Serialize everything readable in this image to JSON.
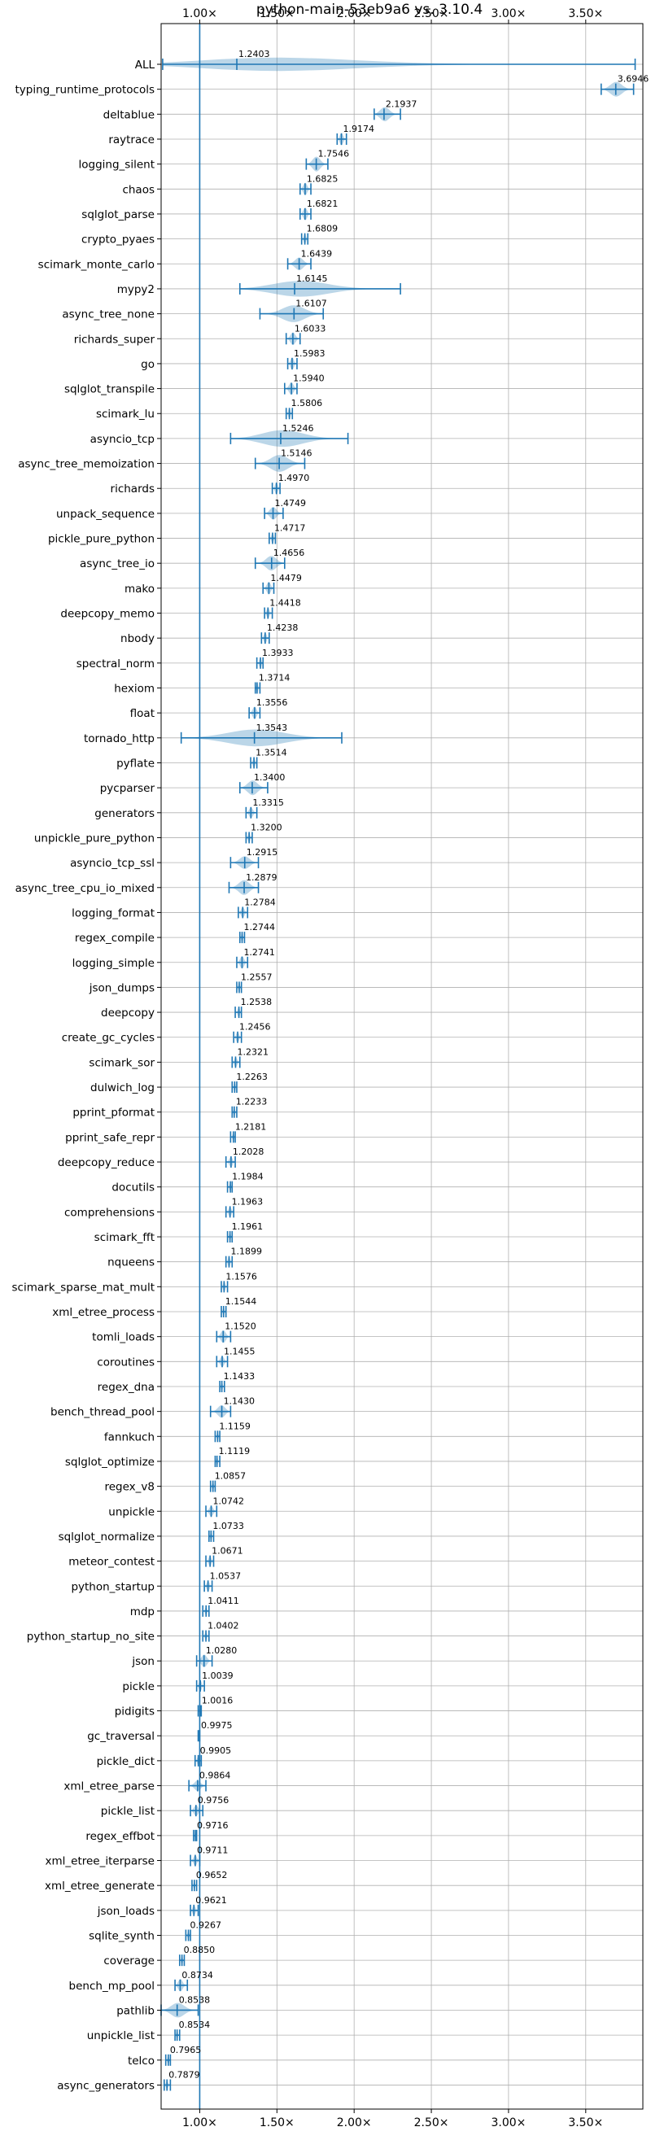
{
  "chart_data": {
    "type": "violin",
    "title": "python-main-53eb9a6 vs. 3.10.4",
    "xlabel": "",
    "ylabel": "",
    "xlim": [
      0.75,
      3.87
    ],
    "xticks": [
      1.0,
      1.5,
      2.0,
      2.5,
      3.0,
      3.5
    ],
    "xtick_labels": [
      "1.00×",
      "1.50×",
      "2.00×",
      "2.50×",
      "3.00×",
      "3.50×"
    ],
    "reference_line": 1.0,
    "grid": true,
    "color": "#1f77b4",
    "benchmarks": [
      {
        "name": "ALL",
        "value": "1.2403",
        "median": 1.2403,
        "min": 0.76,
        "max": 3.82,
        "width": 0.9
      },
      {
        "name": "typing_runtime_protocols",
        "value": "3.6946",
        "median": 3.6946,
        "min": 3.6,
        "max": 3.81,
        "width": 0.7
      },
      {
        "name": "deltablue",
        "value": "2.1937",
        "median": 2.1937,
        "min": 2.13,
        "max": 2.3,
        "width": 0.7
      },
      {
        "name": "raytrace",
        "value": "1.9174",
        "median": 1.9174,
        "min": 1.89,
        "max": 1.95,
        "width": 0.6
      },
      {
        "name": "logging_silent",
        "value": "1.7546",
        "median": 1.7546,
        "min": 1.69,
        "max": 1.83,
        "width": 0.7
      },
      {
        "name": "chaos",
        "value": "1.6825",
        "median": 1.6825,
        "min": 1.65,
        "max": 1.72,
        "width": 0.6
      },
      {
        "name": "sqlglot_parse",
        "value": "1.6821",
        "median": 1.6821,
        "min": 1.65,
        "max": 1.72,
        "width": 0.6
      },
      {
        "name": "crypto_pyaes",
        "value": "1.6809",
        "median": 1.6809,
        "min": 1.66,
        "max": 1.7,
        "width": 0.5
      },
      {
        "name": "scimark_monte_carlo",
        "value": "1.6439",
        "median": 1.6439,
        "min": 1.57,
        "max": 1.72,
        "width": 0.6
      },
      {
        "name": "mypy2",
        "value": "1.6145",
        "median": 1.6145,
        "min": 1.26,
        "max": 2.3,
        "width": 0.8
      },
      {
        "name": "async_tree_none",
        "value": "1.6107",
        "median": 1.6107,
        "min": 1.39,
        "max": 1.8,
        "width": 0.8
      },
      {
        "name": "richards_super",
        "value": "1.6033",
        "median": 1.6033,
        "min": 1.56,
        "max": 1.65,
        "width": 0.6
      },
      {
        "name": "go",
        "value": "1.5983",
        "median": 1.5983,
        "min": 1.57,
        "max": 1.63,
        "width": 0.6
      },
      {
        "name": "sqlglot_transpile",
        "value": "1.5940",
        "median": 1.594,
        "min": 1.55,
        "max": 1.63,
        "width": 0.6
      },
      {
        "name": "scimark_lu",
        "value": "1.5806",
        "median": 1.5806,
        "min": 1.56,
        "max": 1.6,
        "width": 0.5
      },
      {
        "name": "asyncio_tcp",
        "value": "1.5246",
        "median": 1.5246,
        "min": 1.2,
        "max": 1.96,
        "width": 0.8
      },
      {
        "name": "async_tree_memoization",
        "value": "1.5146",
        "median": 1.5146,
        "min": 1.36,
        "max": 1.68,
        "width": 0.8
      },
      {
        "name": "richards",
        "value": "1.4970",
        "median": 1.497,
        "min": 1.47,
        "max": 1.52,
        "width": 0.6
      },
      {
        "name": "unpack_sequence",
        "value": "1.4749",
        "median": 1.4749,
        "min": 1.42,
        "max": 1.54,
        "width": 0.6
      },
      {
        "name": "pickle_pure_python",
        "value": "1.4717",
        "median": 1.4717,
        "min": 1.45,
        "max": 1.49,
        "width": 0.5
      },
      {
        "name": "async_tree_io",
        "value": "1.4656",
        "median": 1.4656,
        "min": 1.36,
        "max": 1.55,
        "width": 0.7
      },
      {
        "name": "mako",
        "value": "1.4479",
        "median": 1.4479,
        "min": 1.41,
        "max": 1.48,
        "width": 0.6
      },
      {
        "name": "deepcopy_memo",
        "value": "1.4418",
        "median": 1.4418,
        "min": 1.42,
        "max": 1.47,
        "width": 0.5
      },
      {
        "name": "nbody",
        "value": "1.4238",
        "median": 1.4238,
        "min": 1.4,
        "max": 1.45,
        "width": 0.5
      },
      {
        "name": "spectral_norm",
        "value": "1.3933",
        "median": 1.3933,
        "min": 1.37,
        "max": 1.41,
        "width": 0.5
      },
      {
        "name": "hexiom",
        "value": "1.3714",
        "median": 1.3714,
        "min": 1.36,
        "max": 1.39,
        "width": 0.5
      },
      {
        "name": "float",
        "value": "1.3556",
        "median": 1.3556,
        "min": 1.32,
        "max": 1.39,
        "width": 0.6
      },
      {
        "name": "tornado_http",
        "value": "1.3543",
        "median": 1.3543,
        "min": 0.88,
        "max": 1.92,
        "width": 0.8
      },
      {
        "name": "pyflate",
        "value": "1.3514",
        "median": 1.3514,
        "min": 1.33,
        "max": 1.37,
        "width": 0.5
      },
      {
        "name": "pycparser",
        "value": "1.3400",
        "median": 1.34,
        "min": 1.26,
        "max": 1.44,
        "width": 0.7
      },
      {
        "name": "generators",
        "value": "1.3315",
        "median": 1.3315,
        "min": 1.3,
        "max": 1.37,
        "width": 0.5
      },
      {
        "name": "unpickle_pure_python",
        "value": "1.3200",
        "median": 1.32,
        "min": 1.3,
        "max": 1.34,
        "width": 0.5
      },
      {
        "name": "asyncio_tcp_ssl",
        "value": "1.2915",
        "median": 1.2915,
        "min": 1.2,
        "max": 1.38,
        "width": 0.6
      },
      {
        "name": "async_tree_cpu_io_mixed",
        "value": "1.2879",
        "median": 1.2879,
        "min": 1.19,
        "max": 1.38,
        "width": 0.7
      },
      {
        "name": "logging_format",
        "value": "1.2784",
        "median": 1.2784,
        "min": 1.25,
        "max": 1.31,
        "width": 0.5
      },
      {
        "name": "regex_compile",
        "value": "1.2744",
        "median": 1.2744,
        "min": 1.26,
        "max": 1.29,
        "width": 0.5
      },
      {
        "name": "logging_simple",
        "value": "1.2741",
        "median": 1.2741,
        "min": 1.24,
        "max": 1.31,
        "width": 0.6
      },
      {
        "name": "json_dumps",
        "value": "1.2557",
        "median": 1.2557,
        "min": 1.24,
        "max": 1.27,
        "width": 0.5
      },
      {
        "name": "deepcopy",
        "value": "1.2538",
        "median": 1.2538,
        "min": 1.23,
        "max": 1.27,
        "width": 0.5
      },
      {
        "name": "create_gc_cycles",
        "value": "1.2456",
        "median": 1.2456,
        "min": 1.22,
        "max": 1.27,
        "width": 0.5
      },
      {
        "name": "scimark_sor",
        "value": "1.2321",
        "median": 1.2321,
        "min": 1.21,
        "max": 1.26,
        "width": 0.5
      },
      {
        "name": "dulwich_log",
        "value": "1.2263",
        "median": 1.2263,
        "min": 1.21,
        "max": 1.24,
        "width": 0.5
      },
      {
        "name": "pprint_pformat",
        "value": "1.2233",
        "median": 1.2233,
        "min": 1.21,
        "max": 1.24,
        "width": 0.4
      },
      {
        "name": "pprint_safe_repr",
        "value": "1.2181",
        "median": 1.2181,
        "min": 1.2,
        "max": 1.23,
        "width": 0.4
      },
      {
        "name": "deepcopy_reduce",
        "value": "1.2028",
        "median": 1.2028,
        "min": 1.17,
        "max": 1.23,
        "width": 0.5
      },
      {
        "name": "docutils",
        "value": "1.1984",
        "median": 1.1984,
        "min": 1.18,
        "max": 1.21,
        "width": 0.4
      },
      {
        "name": "comprehensions",
        "value": "1.1963",
        "median": 1.1963,
        "min": 1.17,
        "max": 1.22,
        "width": 0.5
      },
      {
        "name": "scimark_fft",
        "value": "1.1961",
        "median": 1.1961,
        "min": 1.18,
        "max": 1.21,
        "width": 0.4
      },
      {
        "name": "nqueens",
        "value": "1.1899",
        "median": 1.1899,
        "min": 1.17,
        "max": 1.21,
        "width": 0.5
      },
      {
        "name": "scimark_sparse_mat_mult",
        "value": "1.1576",
        "median": 1.1576,
        "min": 1.14,
        "max": 1.18,
        "width": 0.5
      },
      {
        "name": "xml_etree_process",
        "value": "1.1544",
        "median": 1.1544,
        "min": 1.14,
        "max": 1.17,
        "width": 0.4
      },
      {
        "name": "tomli_loads",
        "value": "1.1520",
        "median": 1.152,
        "min": 1.11,
        "max": 1.2,
        "width": 0.6
      },
      {
        "name": "coroutines",
        "value": "1.1455",
        "median": 1.1455,
        "min": 1.11,
        "max": 1.18,
        "width": 0.5
      },
      {
        "name": "regex_dna",
        "value": "1.1433",
        "median": 1.1433,
        "min": 1.13,
        "max": 1.16,
        "width": 0.4
      },
      {
        "name": "bench_thread_pool",
        "value": "1.1430",
        "median": 1.143,
        "min": 1.07,
        "max": 1.2,
        "width": 0.6
      },
      {
        "name": "fannkuch",
        "value": "1.1159",
        "median": 1.1159,
        "min": 1.1,
        "max": 1.13,
        "width": 0.4
      },
      {
        "name": "sqlglot_optimize",
        "value": "1.1119",
        "median": 1.1119,
        "min": 1.1,
        "max": 1.13,
        "width": 0.4
      },
      {
        "name": "regex_v8",
        "value": "1.0857",
        "median": 1.0857,
        "min": 1.07,
        "max": 1.1,
        "width": 0.4
      },
      {
        "name": "unpickle",
        "value": "1.0742",
        "median": 1.0742,
        "min": 1.04,
        "max": 1.11,
        "width": 0.5
      },
      {
        "name": "sqlglot_normalize",
        "value": "1.0733",
        "median": 1.0733,
        "min": 1.06,
        "max": 1.09,
        "width": 0.4
      },
      {
        "name": "meteor_contest",
        "value": "1.0671",
        "median": 1.0671,
        "min": 1.04,
        "max": 1.09,
        "width": 0.5
      },
      {
        "name": "python_startup",
        "value": "1.0537",
        "median": 1.0537,
        "min": 1.03,
        "max": 1.08,
        "width": 0.5
      },
      {
        "name": "mdp",
        "value": "1.0411",
        "median": 1.0411,
        "min": 1.02,
        "max": 1.06,
        "width": 0.4
      },
      {
        "name": "python_startup_no_site",
        "value": "1.0402",
        "median": 1.0402,
        "min": 1.02,
        "max": 1.06,
        "width": 0.4
      },
      {
        "name": "json",
        "value": "1.0280",
        "median": 1.028,
        "min": 0.98,
        "max": 1.08,
        "width": 0.6
      },
      {
        "name": "pickle",
        "value": "1.0039",
        "median": 1.0039,
        "min": 0.98,
        "max": 1.03,
        "width": 0.5
      },
      {
        "name": "pidigits",
        "value": "1.0016",
        "median": 1.0016,
        "min": 0.99,
        "max": 1.01,
        "width": 0.3
      },
      {
        "name": "gc_traversal",
        "value": "0.9975",
        "median": 0.9975,
        "min": 0.99,
        "max": 1.0,
        "width": 0.3
      },
      {
        "name": "pickle_dict",
        "value": "0.9905",
        "median": 0.9905,
        "min": 0.97,
        "max": 1.01,
        "width": 0.4
      },
      {
        "name": "xml_etree_parse",
        "value": "0.9864",
        "median": 0.9864,
        "min": 0.93,
        "max": 1.04,
        "width": 0.5
      },
      {
        "name": "pickle_list",
        "value": "0.9756",
        "median": 0.9756,
        "min": 0.94,
        "max": 1.02,
        "width": 0.5
      },
      {
        "name": "regex_effbot",
        "value": "0.9716",
        "median": 0.9716,
        "min": 0.96,
        "max": 0.98,
        "width": 0.4
      },
      {
        "name": "xml_etree_iterparse",
        "value": "0.9711",
        "median": 0.9711,
        "min": 0.94,
        "max": 1.0,
        "width": 0.5
      },
      {
        "name": "xml_etree_generate",
        "value": "0.9652",
        "median": 0.9652,
        "min": 0.95,
        "max": 0.98,
        "width": 0.4
      },
      {
        "name": "json_loads",
        "value": "0.9621",
        "median": 0.9621,
        "min": 0.94,
        "max": 0.99,
        "width": 0.5
      },
      {
        "name": "sqlite_synth",
        "value": "0.9267",
        "median": 0.9267,
        "min": 0.91,
        "max": 0.94,
        "width": 0.4
      },
      {
        "name": "coverage",
        "value": "0.8850",
        "median": 0.885,
        "min": 0.87,
        "max": 0.9,
        "width": 0.4
      },
      {
        "name": "bench_mp_pool",
        "value": "0.8734",
        "median": 0.8734,
        "min": 0.84,
        "max": 0.92,
        "width": 0.6
      },
      {
        "name": "pathlib",
        "value": "0.8538",
        "median": 0.8538,
        "min": 0.75,
        "max": 0.99,
        "width": 0.7
      },
      {
        "name": "unpickle_list",
        "value": "0.8534",
        "median": 0.8534,
        "min": 0.84,
        "max": 0.87,
        "width": 0.4
      },
      {
        "name": "telco",
        "value": "0.7965",
        "median": 0.7965,
        "min": 0.78,
        "max": 0.81,
        "width": 0.4
      },
      {
        "name": "async_generators",
        "value": "0.7879",
        "median": 0.7879,
        "min": 0.77,
        "max": 0.81,
        "width": 0.4
      }
    ]
  }
}
